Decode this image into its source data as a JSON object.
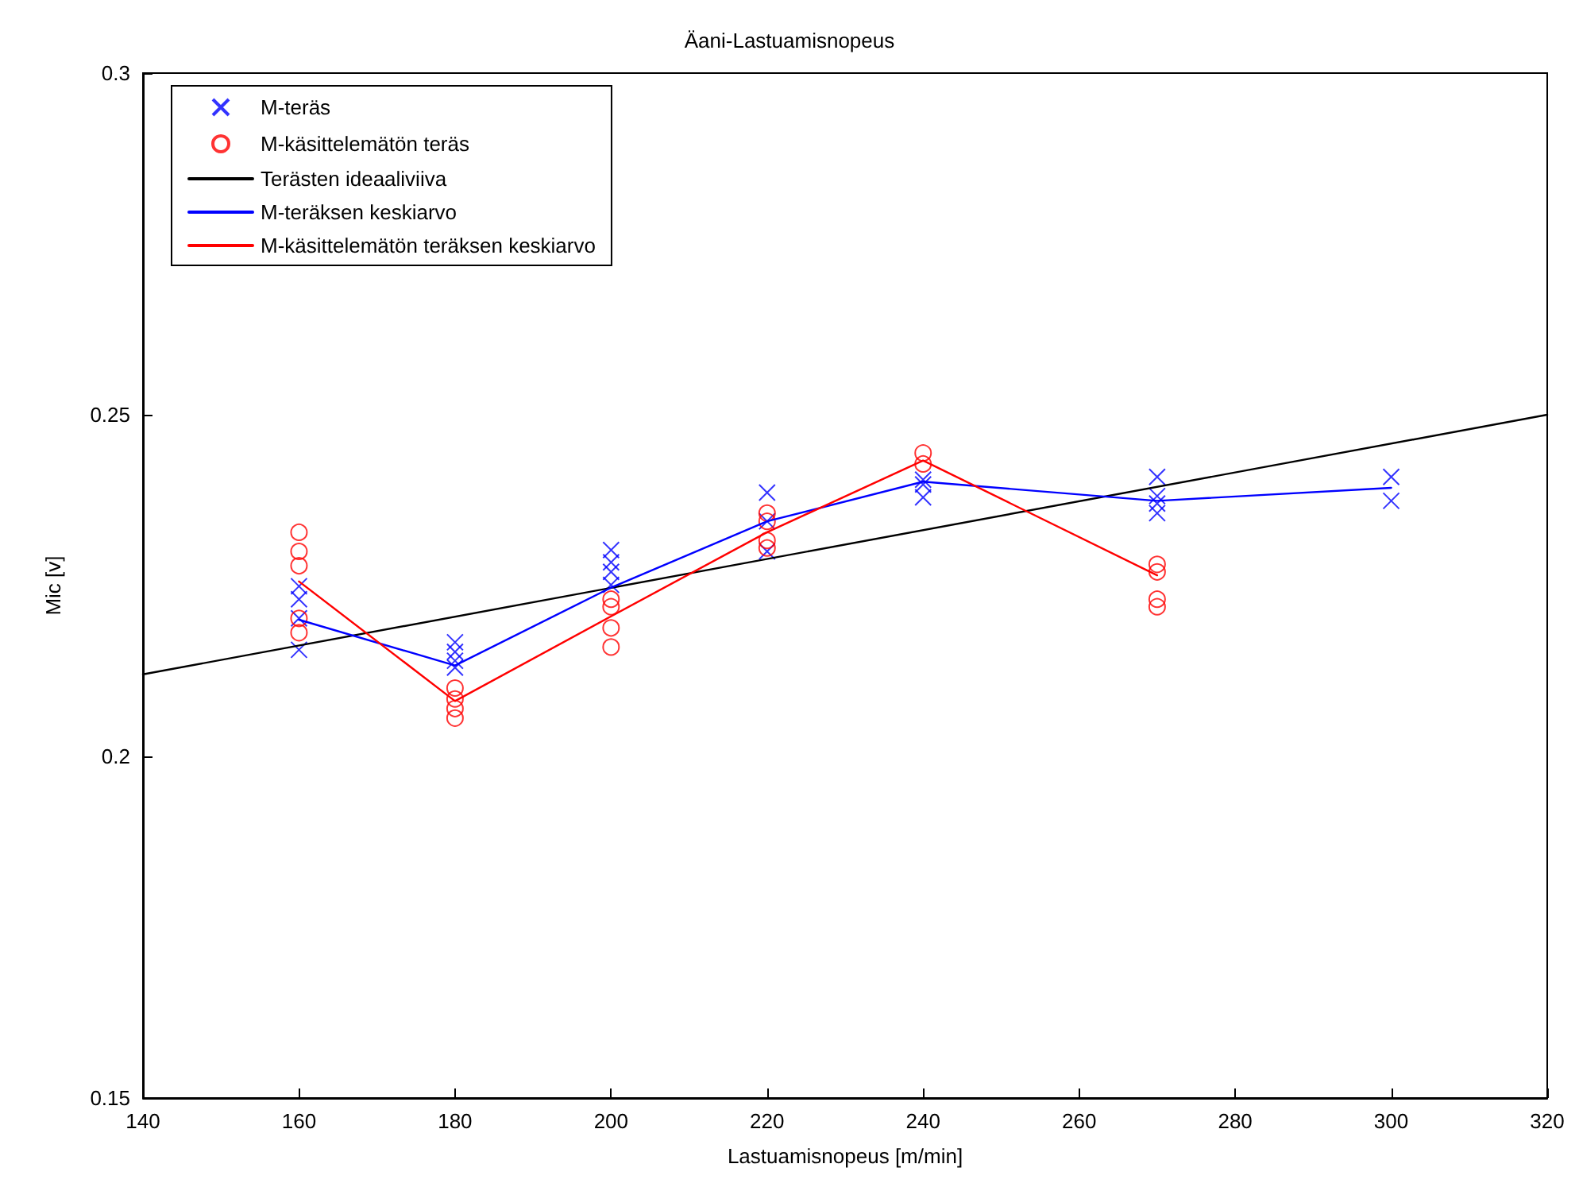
{
  "chart_data": {
    "type": "scatter",
    "title": "Äani-Lastuamisnopeus",
    "xlabel": "Lastuamisnopeus [m/min]",
    "ylabel": "Mic [v]",
    "xlim": [
      140,
      320
    ],
    "xticks": [
      140,
      160,
      180,
      200,
      220,
      240,
      260,
      280,
      300,
      320
    ],
    "ylim": [
      0.15,
      0.3
    ],
    "yticks": [
      0.15,
      0.2,
      0.25,
      0.3
    ],
    "grid": false,
    "legend": "top left",
    "series": [
      {
        "name": "M-teräs",
        "marker": "cross",
        "color": "#0000ff",
        "x": [
          160,
          160,
          160,
          160,
          180,
          180,
          180,
          180,
          200,
          200,
          200,
          200,
          220,
          220,
          220,
          240,
          240,
          240,
          270,
          270,
          270,
          270,
          300,
          300
        ],
        "values": [
          0.2156,
          0.2202,
          0.223,
          0.2249,
          0.2167,
          0.2153,
          0.214,
          0.213,
          0.2302,
          0.2284,
          0.227,
          0.2251,
          0.2386,
          0.2344,
          0.23,
          0.2405,
          0.2398,
          0.2379,
          0.2409,
          0.2381,
          0.237,
          0.2356,
          0.2409,
          0.2374
        ]
      },
      {
        "name": "M-käsittelemätön teräs",
        "marker": "circle",
        "color": "#ff0000",
        "x": [
          160,
          160,
          160,
          160,
          160,
          180,
          180,
          180,
          180,
          200,
          200,
          200,
          200,
          220,
          220,
          220,
          220,
          240,
          240,
          270,
          270,
          270,
          270
        ],
        "values": [
          0.2328,
          0.23,
          0.2279,
          0.2202,
          0.2181,
          0.21,
          0.2084,
          0.207,
          0.2056,
          0.223,
          0.2219,
          0.2188,
          0.216,
          0.2356,
          0.2344,
          0.2316,
          0.2305,
          0.2444,
          0.2428,
          0.2281,
          0.227,
          0.223,
          0.2219
        ]
      },
      {
        "name": "Terästen ideaaliviiva",
        "type": "line",
        "marker": "none",
        "color": "#000000",
        "x": [
          140,
          320
        ],
        "values": [
          0.212,
          0.25
        ]
      },
      {
        "name": "M-teräksen keskiarvo",
        "type": "line",
        "marker": "none",
        "color": "#0000ff",
        "x": [
          160,
          180,
          200,
          220,
          240,
          270,
          300
        ],
        "values": [
          0.22,
          0.2133,
          0.2247,
          0.2344,
          0.2402,
          0.2374,
          0.2393
        ]
      },
      {
        "name": "M-käsittelemätön teräksen keskiarvo",
        "type": "line",
        "marker": "none",
        "color": "#ff0000",
        "x": [
          160,
          180,
          200,
          220,
          240,
          270
        ],
        "values": [
          0.2256,
          0.2081,
          0.2205,
          0.2328,
          0.2433,
          0.2265
        ]
      }
    ]
  }
}
